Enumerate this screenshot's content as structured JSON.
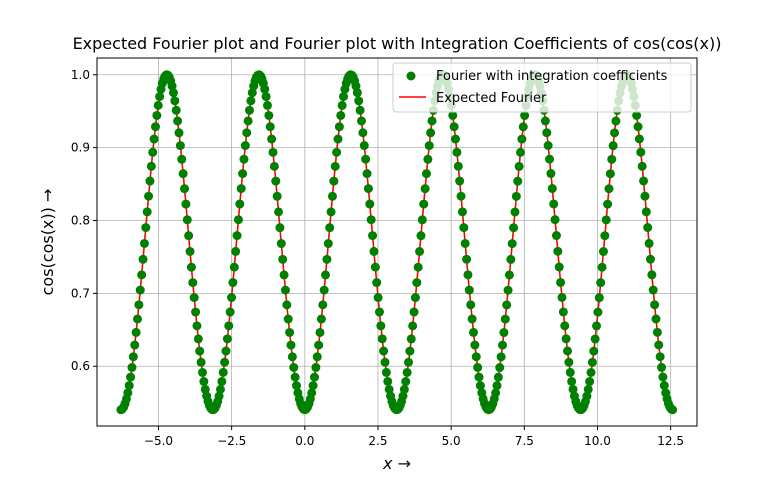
{
  "chart_data": {
    "type": "line",
    "title": "Expected Fourier plot and Fourier plot with Integration Coefficients of cos(cos(x))",
    "xlabel": "x →",
    "ylabel": "cos(cos(x)) →",
    "xlim": [
      -7.1,
      13.4
    ],
    "ylim": [
      0.518,
      1.023
    ],
    "xticks": [
      -5.0,
      -2.5,
      0.0,
      2.5,
      5.0,
      7.5,
      10.0,
      12.5
    ],
    "xtick_labels": [
      "−5.0",
      "−2.5",
      "0.0",
      "2.5",
      "5.0",
      "7.5",
      "10.0",
      "12.5"
    ],
    "yticks": [
      0.6,
      0.7,
      0.8,
      0.9,
      1.0
    ],
    "ytick_labels": [
      "0.6",
      "0.7",
      "0.8",
      "0.9",
      "1.0"
    ],
    "grid": true,
    "legend_position": "top-right",
    "x_domain": [
      -6.283,
      12.566
    ],
    "function": "cos(cos(x))",
    "series": [
      {
        "name": "Fourier with integration coefficients",
        "style": "markers",
        "color": "#008000",
        "n_points": 400
      },
      {
        "name": "Expected Fourier",
        "style": "line",
        "color": "#ff0000",
        "n_points": 800
      }
    ]
  }
}
